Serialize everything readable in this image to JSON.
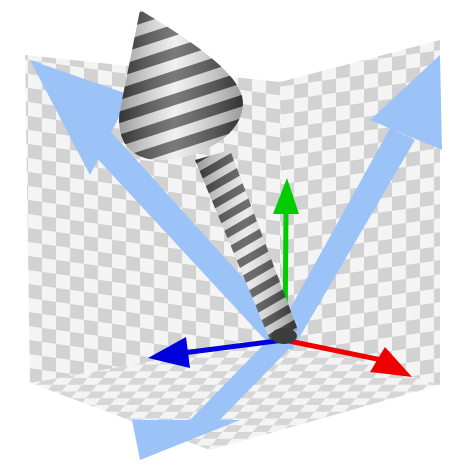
{
  "scene": {
    "checker_colors": {
      "light": "#f4f4f4",
      "dark": "#d2d2d2"
    },
    "axis_colors": {
      "x": "#ff0000",
      "y": "#00cc00",
      "z": "#0000dd"
    },
    "wide_arrow_color": "#9cc3f7",
    "striped_arrow_colors": [
      "#4a4a4a",
      "#e8e8e8"
    ]
  }
}
